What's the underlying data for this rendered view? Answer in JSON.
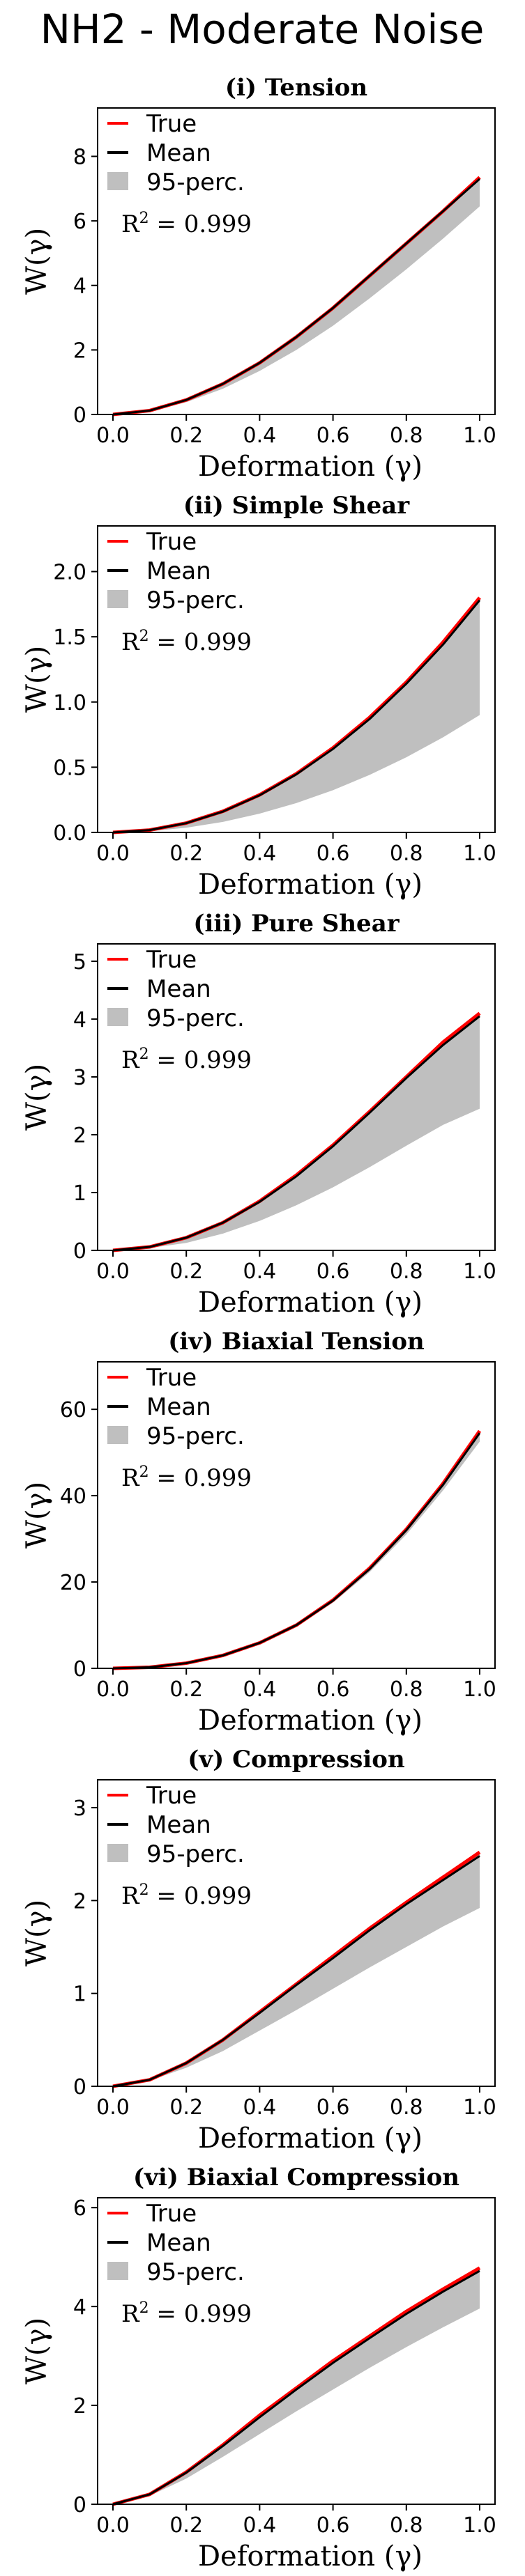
{
  "figure_title": "NH2 - Moderate Noise",
  "colors": {
    "true": "#ff0000",
    "mean": "#000000",
    "band": "#bfbfbf"
  },
  "chart_data": [
    {
      "type": "line",
      "title": "(i) Tension",
      "xlabel": "Deformation (γ)",
      "ylabel": "W(γ)",
      "xlim": [
        0.0,
        1.0
      ],
      "ylim": [
        0,
        9.5
      ],
      "xticks": [
        "0.0",
        "0.2",
        "0.4",
        "0.6",
        "0.8",
        "1.0"
      ],
      "yticks": [
        "0",
        "2",
        "4",
        "6",
        "8"
      ],
      "ytick_values": [
        0,
        2,
        4,
        6,
        8
      ],
      "legend": [
        "True",
        "Mean",
        "95-perc."
      ],
      "r2_label": "R",
      "r2_value": "= 0.999",
      "x": [
        0.0,
        0.1,
        0.2,
        0.3,
        0.4,
        0.5,
        0.6,
        0.7,
        0.8,
        0.9,
        1.0
      ],
      "series": [
        {
          "name": "True",
          "values": [
            0.0,
            0.12,
            0.45,
            0.95,
            1.6,
            2.4,
            3.3,
            4.3,
            5.3,
            6.3,
            7.35
          ]
        },
        {
          "name": "Mean",
          "values": [
            0.0,
            0.12,
            0.45,
            0.95,
            1.6,
            2.4,
            3.3,
            4.3,
            5.3,
            6.3,
            7.3
          ]
        },
        {
          "name": "95-perc. lower",
          "values": [
            0.0,
            0.1,
            0.38,
            0.8,
            1.35,
            2.0,
            2.75,
            3.6,
            4.5,
            5.45,
            6.45
          ]
        },
        {
          "name": "95-perc. upper",
          "values": [
            0.0,
            0.12,
            0.45,
            0.95,
            1.6,
            2.4,
            3.3,
            4.3,
            5.3,
            6.3,
            7.35
          ]
        }
      ]
    },
    {
      "type": "line",
      "title": "(ii) Simple Shear",
      "xlabel": "Deformation (γ)",
      "ylabel": "W(γ)",
      "xlim": [
        0.0,
        1.0
      ],
      "ylim": [
        0,
        2.35
      ],
      "xticks": [
        "0.0",
        "0.2",
        "0.4",
        "0.6",
        "0.8",
        "1.0"
      ],
      "yticks": [
        "0.0",
        "0.5",
        "1.0",
        "1.5",
        "2.0"
      ],
      "ytick_values": [
        0.0,
        0.5,
        1.0,
        1.5,
        2.0
      ],
      "legend": [
        "True",
        "Mean",
        "95-perc."
      ],
      "r2_label": "R",
      "r2_value": "= 0.999",
      "x": [
        0.0,
        0.1,
        0.2,
        0.3,
        0.4,
        0.5,
        0.6,
        0.7,
        0.8,
        0.9,
        1.0
      ],
      "series": [
        {
          "name": "True",
          "values": [
            0.0,
            0.018,
            0.072,
            0.162,
            0.288,
            0.45,
            0.648,
            0.882,
            1.152,
            1.458,
            1.8
          ]
        },
        {
          "name": "Mean",
          "values": [
            0.0,
            0.018,
            0.071,
            0.16,
            0.285,
            0.445,
            0.64,
            0.87,
            1.14,
            1.44,
            1.78
          ]
        },
        {
          "name": "95-perc. lower",
          "values": [
            0.0,
            0.009,
            0.036,
            0.081,
            0.144,
            0.225,
            0.324,
            0.441,
            0.576,
            0.729,
            0.9
          ]
        },
        {
          "name": "95-perc. upper",
          "values": [
            0.0,
            0.018,
            0.072,
            0.162,
            0.288,
            0.45,
            0.648,
            0.882,
            1.152,
            1.458,
            1.8
          ]
        }
      ]
    },
    {
      "type": "line",
      "title": "(iii) Pure Shear",
      "xlabel": "Deformation (γ)",
      "ylabel": "W(γ)",
      "xlim": [
        0.0,
        1.0
      ],
      "ylim": [
        0,
        5.3
      ],
      "xticks": [
        "0.0",
        "0.2",
        "0.4",
        "0.6",
        "0.8",
        "1.0"
      ],
      "yticks": [
        "0",
        "1",
        "2",
        "3",
        "4",
        "5"
      ],
      "ytick_values": [
        0,
        1,
        2,
        3,
        4,
        5
      ],
      "legend": [
        "True",
        "Mean",
        "95-perc."
      ],
      "r2_label": "R",
      "r2_value": "= 0.999",
      "x": [
        0.0,
        0.1,
        0.2,
        0.3,
        0.4,
        0.5,
        0.6,
        0.7,
        0.8,
        0.9,
        1.0
      ],
      "series": [
        {
          "name": "True",
          "values": [
            0.0,
            0.06,
            0.22,
            0.48,
            0.85,
            1.3,
            1.82,
            2.4,
            3.0,
            3.6,
            4.1
          ]
        },
        {
          "name": "Mean",
          "values": [
            0.0,
            0.06,
            0.22,
            0.48,
            0.84,
            1.28,
            1.8,
            2.38,
            2.98,
            3.55,
            4.05
          ]
        },
        {
          "name": "95-perc. lower",
          "values": [
            0.0,
            0.04,
            0.13,
            0.29,
            0.51,
            0.78,
            1.09,
            1.44,
            1.81,
            2.17,
            2.45
          ]
        },
        {
          "name": "95-perc. upper",
          "values": [
            0.0,
            0.06,
            0.22,
            0.48,
            0.85,
            1.3,
            1.82,
            2.4,
            3.0,
            3.6,
            4.1
          ]
        }
      ]
    },
    {
      "type": "line",
      "title": "(iv) Biaxial Tension",
      "xlabel": "Deformation (γ)",
      "ylabel": "W(γ)",
      "xlim": [
        0.0,
        1.0
      ],
      "ylim": [
        0,
        71
      ],
      "xticks": [
        "0.0",
        "0.2",
        "0.4",
        "0.6",
        "0.8",
        "1.0"
      ],
      "yticks": [
        "0",
        "20",
        "40",
        "60"
      ],
      "ytick_values": [
        0,
        20,
        40,
        60
      ],
      "legend": [
        "True",
        "Mean",
        "95-perc."
      ],
      "r2_label": "R",
      "r2_value": "= 0.999",
      "x": [
        0.0,
        0.1,
        0.2,
        0.3,
        0.4,
        0.5,
        0.6,
        0.7,
        0.8,
        0.9,
        1.0
      ],
      "series": [
        {
          "name": "True",
          "values": [
            0.0,
            0.25,
            1.2,
            3.0,
            5.9,
            10.0,
            15.8,
            23.2,
            32.2,
            42.8,
            55.0
          ]
        },
        {
          "name": "Mean",
          "values": [
            0.0,
            0.25,
            1.2,
            3.0,
            5.9,
            10.0,
            15.7,
            23.0,
            32.0,
            42.5,
            54.5
          ]
        },
        {
          "name": "95-perc. lower",
          "values": [
            0.0,
            0.24,
            1.15,
            2.9,
            5.7,
            9.7,
            15.2,
            22.3,
            31.0,
            41.2,
            52.5
          ]
        },
        {
          "name": "95-perc. upper",
          "values": [
            0.0,
            0.25,
            1.2,
            3.0,
            5.9,
            10.0,
            15.8,
            23.2,
            32.2,
            42.8,
            55.0
          ]
        }
      ]
    },
    {
      "type": "line",
      "title": "(v) Compression",
      "xlabel": "Deformation (γ)",
      "ylabel": "W(γ)",
      "xlim": [
        0.0,
        1.0
      ],
      "ylim": [
        0,
        3.3
      ],
      "xticks": [
        "0.0",
        "0.2",
        "0.4",
        "0.6",
        "0.8",
        "1.0"
      ],
      "yticks": [
        "0",
        "1",
        "2",
        "3"
      ],
      "ytick_values": [
        0,
        1,
        2,
        3
      ],
      "legend": [
        "True",
        "Mean",
        "95-perc."
      ],
      "r2_label": "R",
      "r2_value": "= 0.999",
      "x": [
        0.0,
        0.1,
        0.2,
        0.3,
        0.4,
        0.5,
        0.6,
        0.7,
        0.8,
        0.9,
        1.0
      ],
      "series": [
        {
          "name": "True",
          "values": [
            0.0,
            0.07,
            0.25,
            0.5,
            0.8,
            1.1,
            1.4,
            1.7,
            1.98,
            2.25,
            2.52
          ]
        },
        {
          "name": "Mean",
          "values": [
            0.0,
            0.07,
            0.25,
            0.5,
            0.79,
            1.09,
            1.38,
            1.68,
            1.96,
            2.22,
            2.48
          ]
        },
        {
          "name": "95-perc. lower",
          "values": [
            0.0,
            0.06,
            0.2,
            0.38,
            0.6,
            0.82,
            1.05,
            1.28,
            1.5,
            1.72,
            1.92
          ]
        },
        {
          "name": "95-perc. upper",
          "values": [
            0.0,
            0.07,
            0.25,
            0.5,
            0.8,
            1.1,
            1.4,
            1.7,
            1.98,
            2.25,
            2.52
          ]
        }
      ]
    },
    {
      "type": "line",
      "title": "(vi) Biaxial Compression",
      "xlabel": "Deformation (γ)",
      "ylabel": "W(γ)",
      "xlim": [
        0.0,
        1.0
      ],
      "ylim": [
        0,
        6.2
      ],
      "xticks": [
        "0.0",
        "0.2",
        "0.4",
        "0.6",
        "0.8",
        "1.0"
      ],
      "yticks": [
        "0",
        "2",
        "4",
        "6"
      ],
      "ytick_values": [
        0,
        2,
        4,
        6
      ],
      "legend": [
        "True",
        "Mean",
        "95-perc."
      ],
      "r2_label": "R",
      "r2_value": "= 0.999",
      "x": [
        0.0,
        0.1,
        0.2,
        0.3,
        0.4,
        0.5,
        0.6,
        0.7,
        0.8,
        0.9,
        1.0
      ],
      "series": [
        {
          "name": "True",
          "values": [
            0.0,
            0.2,
            0.65,
            1.2,
            1.8,
            2.35,
            2.9,
            3.4,
            3.9,
            4.35,
            4.78
          ]
        },
        {
          "name": "Mean",
          "values": [
            0.0,
            0.2,
            0.64,
            1.18,
            1.76,
            2.32,
            2.86,
            3.36,
            3.85,
            4.3,
            4.72
          ]
        },
        {
          "name": "95-perc. lower",
          "values": [
            0.0,
            0.17,
            0.52,
            0.96,
            1.42,
            1.88,
            2.32,
            2.76,
            3.18,
            3.58,
            3.96
          ]
        },
        {
          "name": "95-perc. upper",
          "values": [
            0.0,
            0.2,
            0.65,
            1.2,
            1.8,
            2.35,
            2.9,
            3.4,
            3.9,
            4.35,
            4.78
          ]
        }
      ]
    }
  ]
}
